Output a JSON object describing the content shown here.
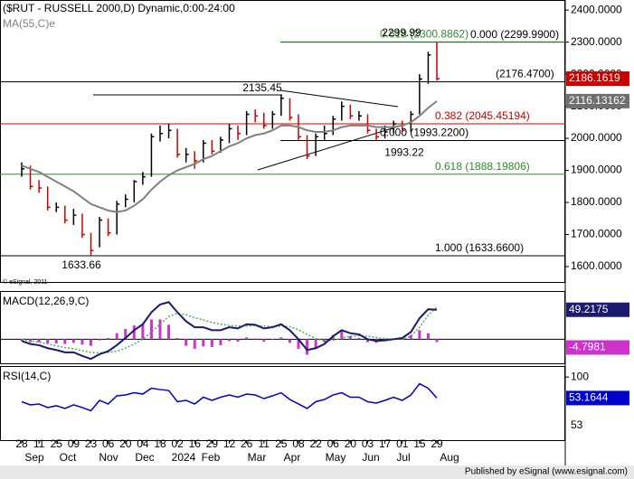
{
  "header": {
    "copyright": "© eSignal, 2011"
  },
  "chart_data": [
    {
      "type": "ohlc",
      "title": "($RUT - RUSSELL 2000,D) Dynamic,0:00-24:00",
      "categories": [
        "28",
        null,
        "11",
        null,
        "25",
        null,
        "09",
        null,
        "23",
        null,
        "06",
        null,
        "20",
        null,
        "04",
        null,
        "18",
        null,
        "02",
        null,
        "16",
        null,
        "29",
        null,
        "12",
        null,
        "26",
        null,
        "11",
        null,
        "25",
        null,
        "08",
        null,
        "22",
        null,
        "06",
        null,
        "20",
        null,
        "03",
        null,
        "17",
        null,
        "01",
        null,
        "15",
        null,
        "29"
      ],
      "month_labels": [
        "Sep",
        "Oct",
        "Nov",
        "Dec",
        "2024",
        "Feb",
        "Mar",
        "Apr",
        "May",
        "Jun",
        "Jul",
        "Aug"
      ],
      "high": [
        1925,
        1915,
        1870,
        1850,
        1800,
        1790,
        1780,
        1765,
        1705,
        1755,
        1750,
        1805,
        1825,
        1870,
        1895,
        2015,
        2040,
        2045,
        2030,
        1970,
        1960,
        1995,
        1995,
        2005,
        2045,
        2040,
        2085,
        2090,
        2080,
        2085,
        2135.45,
        2125,
        2075,
        2010,
        2015,
        2040,
        2070,
        2115,
        2105,
        2085,
        2075,
        2030,
        2040,
        2055,
        2055,
        2085,
        2200,
        2270,
        2299.99
      ],
      "low": [
        1880,
        1840,
        1830,
        1775,
        1770,
        1735,
        1730,
        1690,
        1633.66,
        1660,
        1695,
        1700,
        1785,
        1800,
        1855,
        1880,
        1990,
        2000,
        1940,
        1925,
        1905,
        1925,
        1950,
        1955,
        1985,
        1995,
        2010,
        2050,
        2030,
        2030,
        2070,
        2055,
        1995,
        1935,
        1945,
        1995,
        2010,
        2055,
        2060,
        2055,
        2015,
        1993.22,
        2000,
        2015,
        2020,
        2020,
        2075,
        2170,
        2180
      ],
      "close": [
        1905,
        1850,
        1845,
        1785,
        1785,
        1745,
        1760,
        1700,
        1650,
        1745,
        1705,
        1795,
        1810,
        1865,
        1880,
        2005,
        2015,
        2025,
        1950,
        1950,
        1930,
        1985,
        1960,
        1995,
        2030,
        2015,
        2075,
        2070,
        2040,
        2075,
        2125,
        2065,
        2005,
        1945,
        2005,
        2015,
        2060,
        2100,
        2070,
        2070,
        2025,
        2005,
        2020,
        2045,
        2025,
        2075,
        2185,
        2260,
        2186.1619
      ],
      "up_color": "#000000",
      "down_color": "#cc0000",
      "ma": {
        "name": "MA(55,C)e",
        "color": "#808080",
        "values": [
          1915,
          1905,
          1895,
          1880,
          1865,
          1850,
          1835,
          1815,
          1795,
          1785,
          1775,
          1770,
          1775,
          1790,
          1810,
          1840,
          1865,
          1885,
          1900,
          1910,
          1920,
          1935,
          1945,
          1960,
          1975,
          1985,
          2000,
          2010,
          2015,
          2025,
          2040,
          2040,
          2035,
          2025,
          2020,
          2020,
          2025,
          2035,
          2040,
          2040,
          2040,
          2035,
          2035,
          2035,
          2040,
          2050,
          2070,
          2095,
          2116.13162
        ]
      },
      "levels": [
        {
          "value": 2299.99,
          "label": "0.000 (2299.9900)",
          "color": "#000000"
        },
        {
          "value": 2300.8862,
          "label": "0.618 (2300.8862)",
          "color": "#2e8b2e"
        },
        {
          "value": 2176.47,
          "label": "(2176.4700)",
          "color": "#000000"
        },
        {
          "value": 2045.45194,
          "label": "0.382 (2045.45194)",
          "color": "#cc0000"
        },
        {
          "value": 1993.22,
          "label": "0.000 (1993.2200)",
          "color": "#000000"
        },
        {
          "value": 1888.19806,
          "label": "0.618 (1888.19806)",
          "color": "#2e8b2e"
        },
        {
          "value": 1633.66,
          "label": "1.000 (1633.6600)",
          "color": "#000000"
        }
      ],
      "pivots": [
        2299.99,
        2135.45,
        1993.22,
        1633.66
      ],
      "ylim": [
        1552,
        2423
      ],
      "yticks": [
        {
          "value": 2400,
          "label": "2400.0000"
        },
        {
          "value": 2300,
          "label": "2300.0000"
        },
        {
          "value": 2200,
          "label": "2200.0000"
        },
        {
          "value": 2100,
          "label": "2100.0000"
        },
        {
          "value": 2000,
          "label": "2000.0000"
        },
        {
          "value": 1900,
          "label": "1900.0000"
        },
        {
          "value": 1800,
          "label": "1800.0000"
        },
        {
          "value": 1700,
          "label": "1700.0000"
        },
        {
          "value": 1600,
          "label": "1600.0000"
        }
      ]
    },
    {
      "type": "macd",
      "title": "MACD(12,26,9,C)",
      "ylim": [
        -40.3,
        79
      ],
      "series": [
        {
          "color": "#1a1a6e",
          "values": [
            -3,
            -8,
            -10,
            -15,
            -18,
            -22,
            -22,
            -28,
            -33,
            -25,
            -20,
            -10,
            2,
            15,
            25,
            45,
            58,
            62,
            45,
            30,
            20,
            20,
            15,
            15,
            20,
            18,
            25,
            24,
            18,
            20,
            25,
            15,
            0,
            -18,
            -15,
            -8,
            5,
            15,
            10,
            8,
            0,
            -3,
            -2,
            0,
            2,
            12,
            35,
            50,
            49.2175
          ]
        },
        {
          "color": "#4caf50",
          "values": [
            0,
            -3,
            -5,
            -8,
            -11,
            -14,
            -16,
            -19,
            -22,
            -23,
            -22,
            -20,
            -15,
            -8,
            0,
            12,
            25,
            38,
            43,
            41,
            36,
            32,
            28,
            25,
            23,
            22,
            22,
            23,
            22,
            21,
            22,
            21,
            16,
            8,
            1,
            -3,
            -2,
            2,
            5,
            6,
            5,
            3,
            1,
            0,
            0,
            5,
            20,
            40,
            54.0156
          ]
        }
      ],
      "histogram": {
        "color": "#cc33cc",
        "values": [
          -3,
          -5,
          -5,
          -7,
          -7,
          -8,
          -6,
          -9,
          -11,
          -2,
          2,
          10,
          17,
          23,
          25,
          33,
          33,
          24,
          2,
          -11,
          -16,
          -12,
          -13,
          -10,
          -3,
          -4,
          3,
          1,
          -4,
          -1,
          3,
          -6,
          -16,
          -26,
          -16,
          -5,
          7,
          13,
          5,
          2,
          -5,
          -6,
          -3,
          0,
          2,
          7,
          15,
          10,
          -4.7981
        ]
      }
    },
    {
      "type": "line",
      "title": "RSI(14,C)",
      "ylim": [
        -40.5,
        122.4
      ],
      "yticks": [
        100
      ],
      "axis_note": "53",
      "color": "#0000cc",
      "values": [
        45,
        38,
        40,
        32,
        36,
        30,
        38,
        32,
        25,
        48,
        40,
        58,
        60,
        65,
        62,
        75,
        72,
        70,
        45,
        48,
        40,
        55,
        48,
        55,
        60,
        55,
        62,
        60,
        52,
        58,
        65,
        50,
        40,
        30,
        45,
        50,
        60,
        65,
        55,
        55,
        45,
        42,
        48,
        55,
        48,
        60,
        85,
        75,
        53.1644
      ]
    }
  ],
  "footer": "Published by eSignal (www.esignal.com)"
}
